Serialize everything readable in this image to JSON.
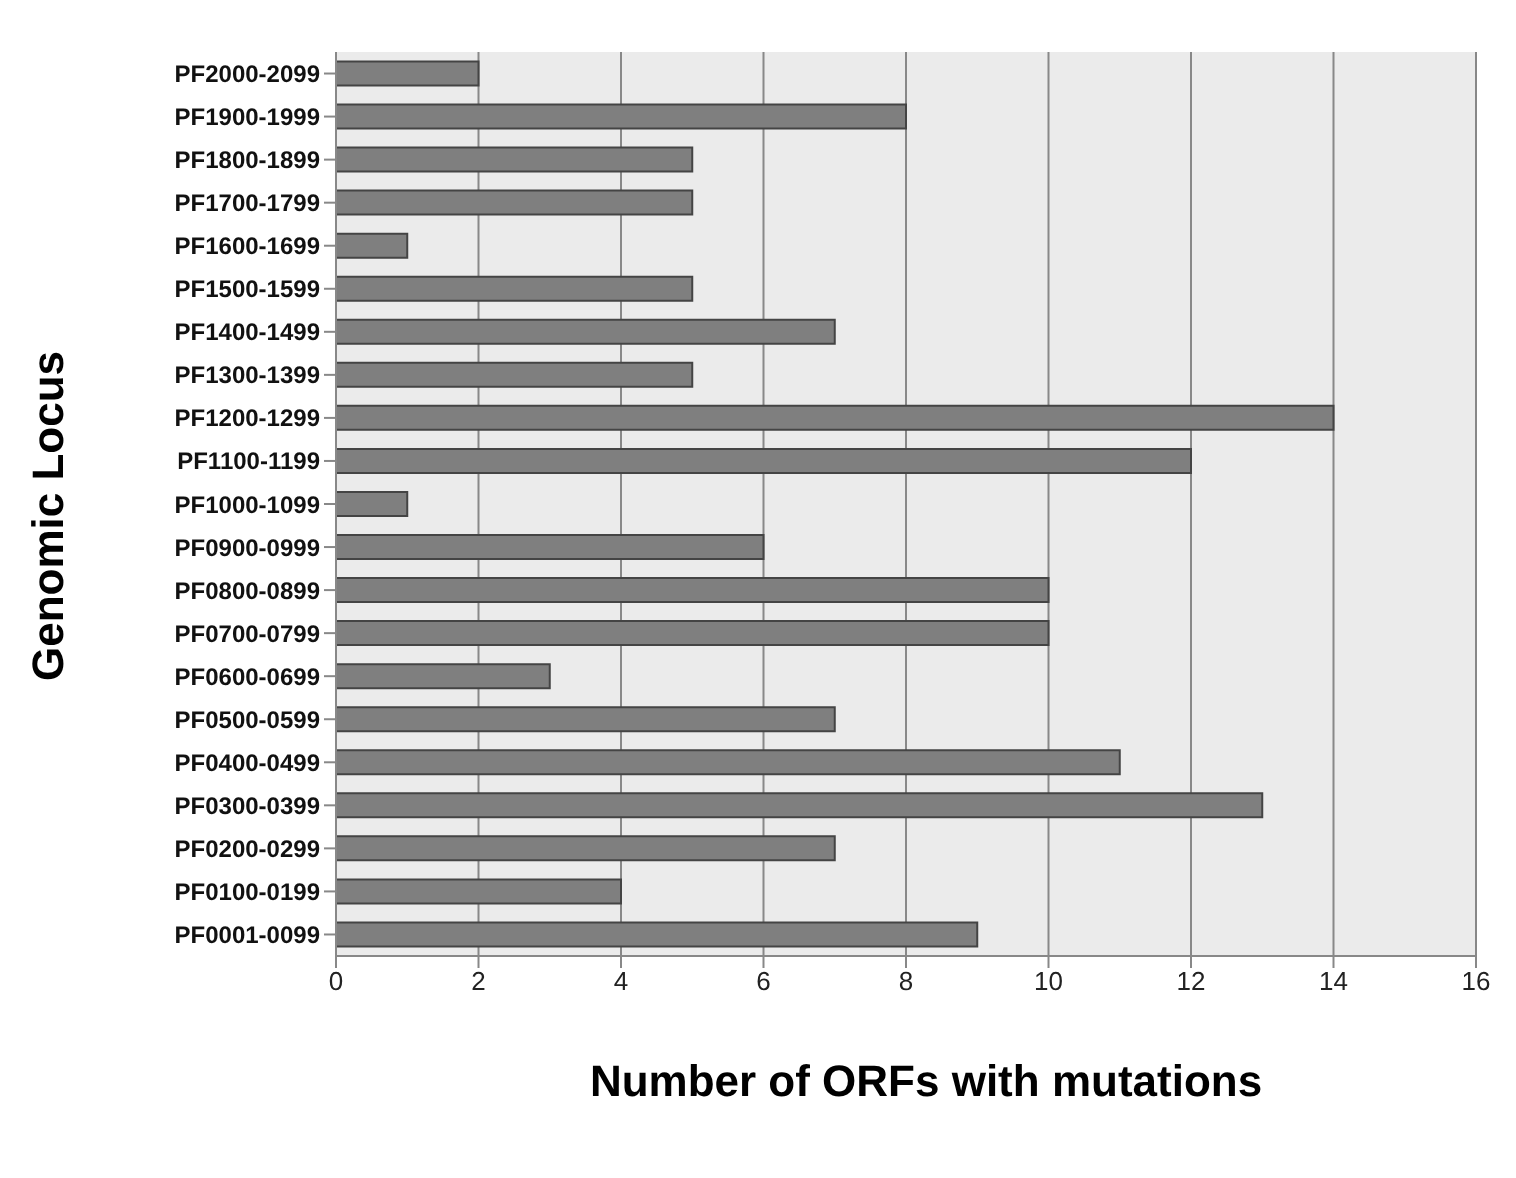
{
  "chart_data": {
    "type": "bar",
    "orientation": "horizontal",
    "xlabel": "Number of ORFs with mutations",
    "ylabel": "Genomic Locus",
    "categories": [
      "PF2000-2099",
      "PF1900-1999",
      "PF1800-1899",
      "PF1700-1799",
      "PF1600-1699",
      "PF1500-1599",
      "PF1400-1499",
      "PF1300-1399",
      "PF1200-1299",
      "PF1100-1199",
      "PF1000-1099",
      "PF0900-0999",
      "PF0800-0899",
      "PF0700-0799",
      "PF0600-0699",
      "PF0500-0599",
      "PF0400-0499",
      "PF0300-0399",
      "PF0200-0299",
      "PF0100-0199",
      "PF0001-0099"
    ],
    "values": [
      2,
      8,
      5,
      5,
      1,
      5,
      7,
      5,
      14,
      12,
      1,
      6,
      10,
      10,
      3,
      7,
      11,
      13,
      7,
      4,
      9
    ],
    "color": "#7f7f7f",
    "xlim": [
      0,
      16
    ],
    "xticks": [
      0,
      2,
      4,
      6,
      8,
      10,
      12,
      14,
      16
    ],
    "grid": "x"
  }
}
